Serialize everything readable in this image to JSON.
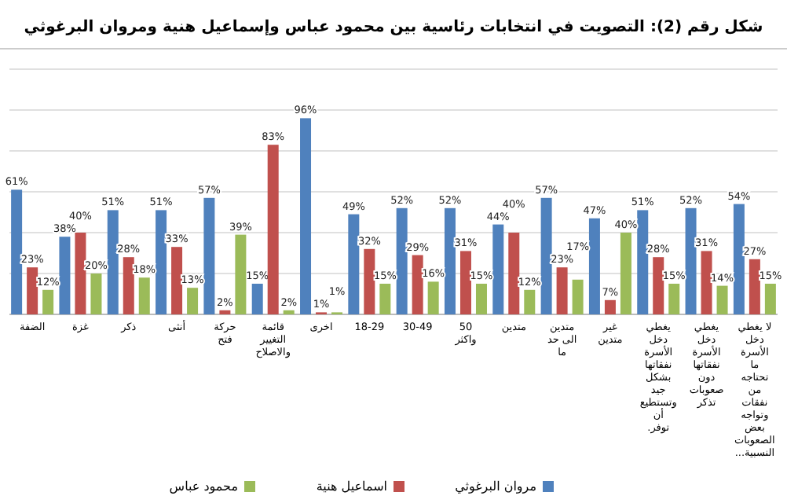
{
  "chart_data": {
    "type": "bar",
    "title": "شكل رقم (2): التصويت في انتخابات رئاسية بين محمود عباس وإسماعيل هنية ومروان البرغوثي",
    "categories": [
      "الضفة",
      "غزة",
      "ذكر",
      "أنثى",
      "حركة فتح",
      "قائمة التغيير والاصلاح",
      "اخرى",
      "18-29",
      "30-49",
      "50 واكثر",
      "متدين",
      "متدين الى حد ما",
      "غير متدين",
      "يغطي دخل الأسرة نفقاتها بشكل جيد وتستطيع أن توفر.",
      "يغطي دخل الأسرة نفقاتها دون صعوبات تذكر",
      "لا يغطي دخل الأسرة ما تحتاجه من نفقات وتواجه بعض الصعوبات النسبية..."
    ],
    "series": [
      {
        "name": "مروان البرغوثي",
        "color": "#4f81bd",
        "values": [
          61,
          38,
          51,
          51,
          57,
          15,
          96,
          49,
          52,
          52,
          44,
          57,
          47,
          51,
          52,
          54
        ],
        "value_labels": [
          "61%",
          "38%",
          "51%",
          "51%",
          "57%",
          "15%",
          "96%",
          "49%",
          "52%",
          "52%",
          "44%",
          "57%",
          "47%",
          "51%",
          "52%",
          "54%"
        ]
      },
      {
        "name": "اسماعيل هنية",
        "color": "#c0504d",
        "values": [
          23,
          40,
          28,
          33,
          2,
          83,
          1,
          32,
          29,
          31,
          40,
          23,
          7,
          28,
          31,
          27
        ],
        "value_labels": [
          "23%",
          "40%",
          "28%",
          "33%",
          "2%",
          "83%",
          "1%",
          "32%",
          "29%",
          "31%",
          "40%",
          "23%",
          "7%",
          "28%",
          "31%",
          "27%"
        ]
      },
      {
        "name": "محمود عباس",
        "color": "#9bbb59",
        "values": [
          12,
          20,
          18,
          13,
          39,
          2,
          1,
          15,
          16,
          15,
          12,
          17,
          40,
          15,
          14,
          15
        ],
        "value_labels": [
          "12%",
          "20%",
          "18%",
          "13%",
          "39%",
          "2%",
          "1%",
          "15%",
          "16%",
          "15%",
          "12%",
          "17%",
          "40%",
          "15%",
          "14%",
          "15%"
        ]
      }
    ],
    "ylim": [
      0,
      120
    ],
    "yticks": [
      {
        "value": 0,
        "label": null
      },
      {
        "value": 20,
        "label": null
      },
      {
        "value": 40,
        "label": null
      },
      {
        "value": 60,
        "label": null
      },
      {
        "value": 80,
        "label": null
      },
      {
        "value": 100,
        "label": null
      },
      {
        "value": 120,
        "label": null
      }
    ],
    "grid": "y",
    "legend": "bottom"
  }
}
